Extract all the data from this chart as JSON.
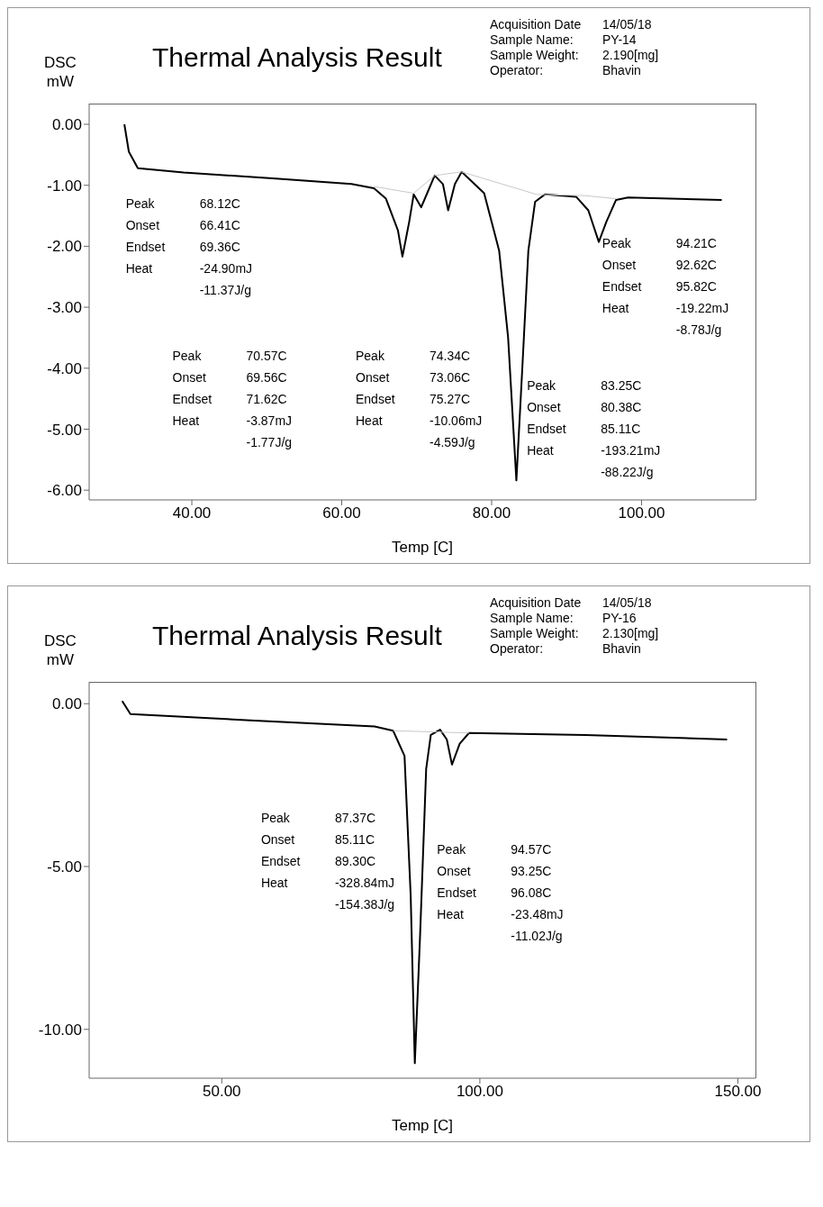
{
  "chart_data": [
    {
      "type": "line",
      "title": "Thermal Analysis Result",
      "xlabel": "Temp  [C]",
      "ylabel": "DSC mW",
      "marker": "none",
      "xlim": [
        26.3,
        115.2
      ],
      "ylim": [
        -6.16,
        0.34
      ],
      "xticks": [
        {
          "value": 40,
          "label": "40.00"
        },
        {
          "value": 60,
          "label": "60.00"
        },
        {
          "value": 80,
          "label": "80.00"
        },
        {
          "value": 100,
          "label": "100.00"
        }
      ],
      "yticks": [
        {
          "value": 0,
          "label": "0.00"
        },
        {
          "value": -1,
          "label": "-1.00"
        },
        {
          "value": -2,
          "label": "-2.00"
        },
        {
          "value": -3,
          "label": "-3.00"
        },
        {
          "value": -4,
          "label": "-4.00"
        },
        {
          "value": -5,
          "label": "-5.00"
        },
        {
          "value": -6,
          "label": "-6.00"
        }
      ],
      "series": [
        {
          "color": "#000000",
          "x": [
            31,
            31.6,
            32.8,
            38.9,
            51.2,
            61.3,
            64.3,
            65.9,
            67.5,
            68.1,
            69,
            69.6,
            70.6,
            71.4,
            72.4,
            73.5,
            74.2,
            75.1,
            76,
            79,
            81,
            82.2,
            83.3,
            84.1,
            84.9,
            85.8,
            87.1,
            91.3,
            92.9,
            94.3,
            95.3,
            96.6,
            98.2,
            110.7
          ],
          "values": [
            0.0,
            -0.45,
            -0.72,
            -0.79,
            -0.89,
            -0.98,
            -1.05,
            -1.22,
            -1.74,
            -2.17,
            -1.6,
            -1.15,
            -1.36,
            -1.13,
            -0.84,
            -0.98,
            -1.41,
            -0.98,
            -0.78,
            -1.13,
            -2.07,
            -3.5,
            -5.84,
            -3.98,
            -2.07,
            -1.27,
            -1.15,
            -1.19,
            -1.41,
            -1.93,
            -1.6,
            -1.24,
            -1.2,
            -1.24
          ]
        },
        {
          "color": "#c8c8c8",
          "x": [
            64.3,
            69.6,
            72.4,
            76,
            86,
            92.5,
            96.6
          ],
          "values": [
            -1.02,
            -1.13,
            -0.84,
            -0.78,
            -1.15,
            -1.17,
            -1.22
          ]
        }
      ],
      "annotations": [
        "Acquisition Date\t14/05/18\nSample Name:\tPY-14\nSample Weight:\t2.190[mg]\nOperator:\tBhavin",
        "Peak\t68.12C\nOnset\t66.41C\nEndset\t69.36C\nHeat\t-24.90mJ\n-11.37J/g",
        "Peak\t70.57C\nOnset\t69.56C\nEndset\t71.62C\nHeat\t-3.87mJ\n-1.77J/g",
        "Peak\t74.34C\nOnset\t73.06C\nEndset\t75.27C\nHeat\t-10.06mJ\n-4.59J/g",
        "Peak\t83.25C\nOnset\t80.38C\nEndset\t85.11C\nHeat\t-193.21mJ\n-88.22J/g",
        "Peak\t94.21C\nOnset\t92.62C\nEndset\t95.82C\nHeat\t-19.22mJ\n-8.78J/g"
      ]
    },
    {
      "type": "line",
      "title": "Thermal Analysis Result",
      "xlabel": "Temp  [C]",
      "ylabel": "DSC mW",
      "marker": "none",
      "xlim": [
        24.3,
        153.4
      ],
      "ylim": [
        -11.5,
        0.67
      ],
      "xticks": [
        {
          "value": 50,
          "label": "50.00"
        },
        {
          "value": 100,
          "label": "100.00"
        },
        {
          "value": 150,
          "label": "150.00"
        }
      ],
      "yticks": [
        {
          "value": 0,
          "label": "0.00"
        },
        {
          "value": -5,
          "label": "-5.00"
        },
        {
          "value": -10,
          "label": "-10.00"
        }
      ],
      "series": [
        {
          "color": "#000000",
          "x": [
            30.7,
            32.3,
            55.5,
            79.6,
            83.2,
            85.4,
            86.6,
            87.4,
            88.4,
            89.6,
            90.5,
            92.3,
            93.6,
            94.6,
            96.1,
            97.9,
            120.4,
            147.9
          ],
          "values": [
            0.08,
            -0.32,
            -0.51,
            -0.7,
            -0.83,
            -1.6,
            -5.9,
            -11.04,
            -7.2,
            -2,
            -0.96,
            -0.8,
            -1.1,
            -1.87,
            -1.23,
            -0.9,
            -0.96,
            -1.1
          ]
        },
        {
          "color": "#c8c8c8",
          "x": [
            83.2,
            97.9
          ],
          "values": [
            -0.83,
            -0.9
          ]
        }
      ],
      "annotations": [
        "Acquisition Date\t14/05/18\nSample Name:\tPY-16\nSample Weight:\t2.130[mg]\nOperator:\tBhavin",
        "Peak\t87.37C\nOnset\t85.11C\nEndset\t89.30C\nHeat\t-328.84mJ\n-154.38J/g",
        "Peak\t94.57C\nOnset\t93.25C\nEndset\t96.08C\nHeat\t-23.48mJ\n-11.02J/g"
      ]
    }
  ]
}
